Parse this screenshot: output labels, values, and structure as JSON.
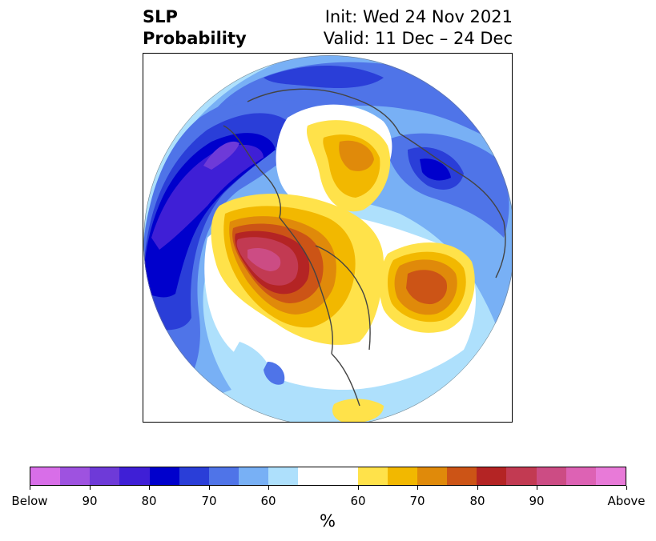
{
  "title": {
    "left_line1": "SLP",
    "left_line2": "Probability",
    "right_line1": "Init: Wed 24 Nov 2021",
    "right_line2": "Valid: 11 Dec – 24 Dec"
  },
  "colorbar": {
    "colors": [
      "#d86ee8",
      "#9e52e0",
      "#6e3ad8",
      "#3f1fd6",
      "#0000cc",
      "#2a3ed8",
      "#4f74e8",
      "#78b0f5",
      "#aee0fc",
      "#ffffff",
      "#ffe24a",
      "#f2b800",
      "#e08a0a",
      "#cc5416",
      "#b42424",
      "#c23a52",
      "#cc4c84",
      "#dd62b4",
      "#e87ad8"
    ],
    "tick_labels": [
      "Below",
      "90",
      "80",
      "70",
      "60",
      "60",
      "70",
      "80",
      "90",
      "Above"
    ],
    "unit_label": "%"
  },
  "map": {
    "projection": "north-polar-stereographic",
    "variable": "SLP",
    "regions": [
      {
        "name": "western-pacific-below-core",
        "category": "below-80-90"
      },
      {
        "name": "north-pacific-below",
        "category": "below-70-80"
      },
      {
        "name": "north-atlantic-scandinavia-below",
        "category": "below-70-80"
      },
      {
        "name": "arctic-above",
        "category": "above-60-70"
      },
      {
        "name": "alaska-canada-above-core",
        "category": "above-80-90"
      },
      {
        "name": "north-atlantic-above",
        "category": "above-70-80"
      }
    ]
  }
}
